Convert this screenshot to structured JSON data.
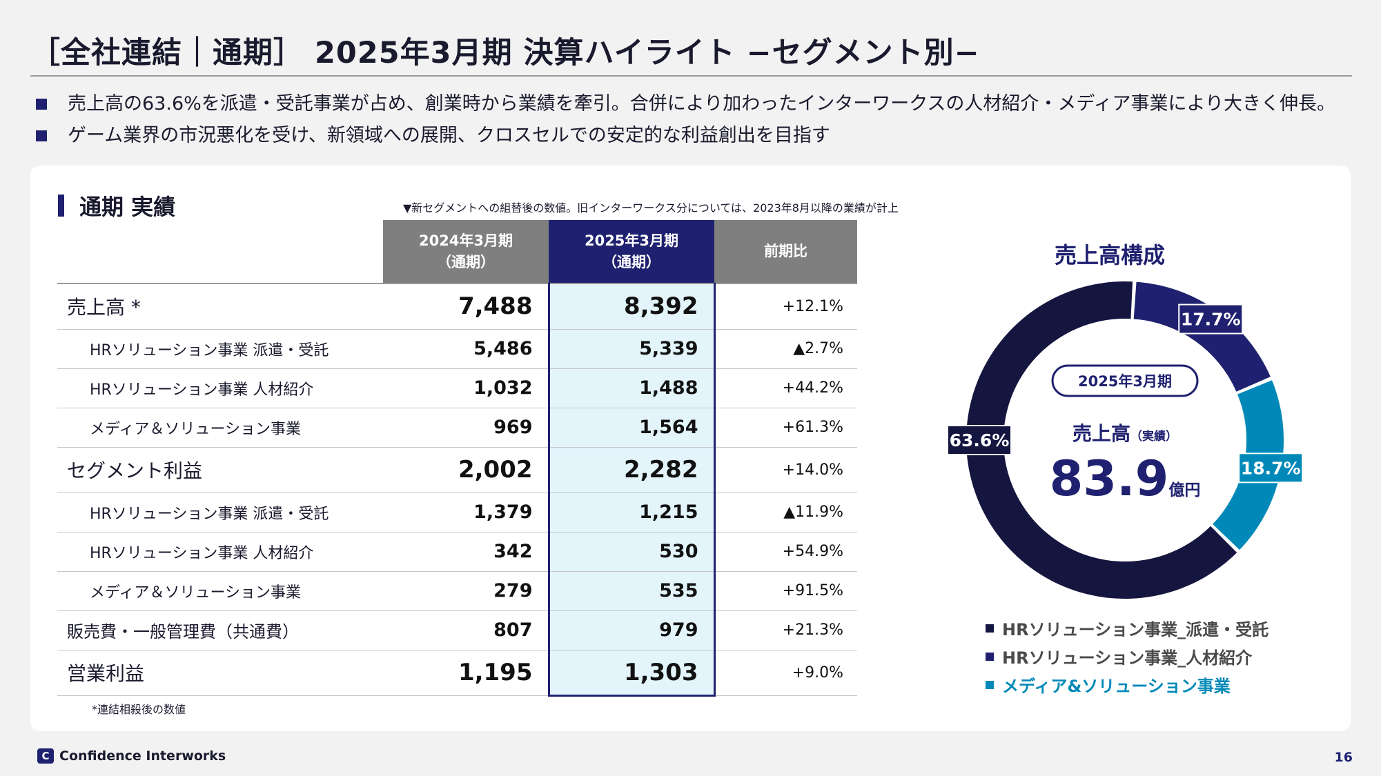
{
  "header": {
    "title": "［全社連結｜通期］ 2025年3月期 決算ハイライト −セグメント別−"
  },
  "bullets": [
    "売上高の63.6%を派遣・受託事業が占め、創業時から業績を牽引。合併により加わったインターワークスの人材紹介・メディア事業により大きく伸長。",
    "ゲーム業界の市況悪化を受け、新領域への展開、クロスセルでの安定的な利益創出を目指す"
  ],
  "section": {
    "title": "通期 実績",
    "note_top": "▼新セグメントへの組替後の数値。旧インターワークス分については、2023年8月以降の業績が計上",
    "note_bottom": "*連結相殺後の数値"
  },
  "table": {
    "headers": {
      "prev": "2024年3月期",
      "prev_sub": "（通期）",
      "curr": "2025年3月期",
      "curr_sub": "（通期）",
      "change": "前期比"
    },
    "rows": [
      {
        "label": "売上高 *",
        "prev": "7,488",
        "curr": "8,392",
        "change": "+12.1%"
      },
      {
        "label": "HRソリューション事業 派遣・受託",
        "prev": "5,486",
        "curr": "5,339",
        "change": "▲2.7%"
      },
      {
        "label": "HRソリューション事業 人材紹介",
        "prev": "1,032",
        "curr": "1,488",
        "change": "+44.2%"
      },
      {
        "label": "メディア＆ソリューション事業",
        "prev": "969",
        "curr": "1,564",
        "change": "+61.3%"
      },
      {
        "label": "セグメント利益",
        "prev": "2,002",
        "curr": "2,282",
        "change": "+14.0%"
      },
      {
        "label": "HRソリューション事業 派遣・受託",
        "prev": "1,379",
        "curr": "1,215",
        "change": "▲11.9%"
      },
      {
        "label": "HRソリューション事業 人材紹介",
        "prev": "342",
        "curr": "530",
        "change": "+54.9%"
      },
      {
        "label": "メディア＆ソリューション事業",
        "prev": "279",
        "curr": "535",
        "change": "+91.5%"
      },
      {
        "label": "販売費・一般管理費（共通費）",
        "prev": "807",
        "curr": "979",
        "change": "+21.3%"
      },
      {
        "label": "営業利益",
        "prev": "1,195",
        "curr": "1,303",
        "change": "+9.0%"
      }
    ]
  },
  "chart": {
    "title": "売上高構成",
    "center_badge": "2025年3月期",
    "center_label": "売上高",
    "center_label_sub": "（実績）",
    "center_value": "83.9",
    "center_unit": "億円",
    "colors": [
      "#15163f",
      "#1f2170",
      "#0089b8"
    ]
  },
  "chart_data": {
    "type": "pie",
    "categories": [
      "HRソリューション事業_派遣・受託",
      "HRソリューション事業_人材紹介",
      "メディア&ソリューション事業"
    ],
    "values": [
      63.6,
      17.7,
      18.7
    ],
    "labels": [
      "63.6%",
      "17.7%",
      "18.7%"
    ],
    "title": "売上高構成",
    "legend": "bottom"
  },
  "footer": {
    "company": "Confidence Interworks",
    "logo_mark": "C",
    "page": "16"
  }
}
